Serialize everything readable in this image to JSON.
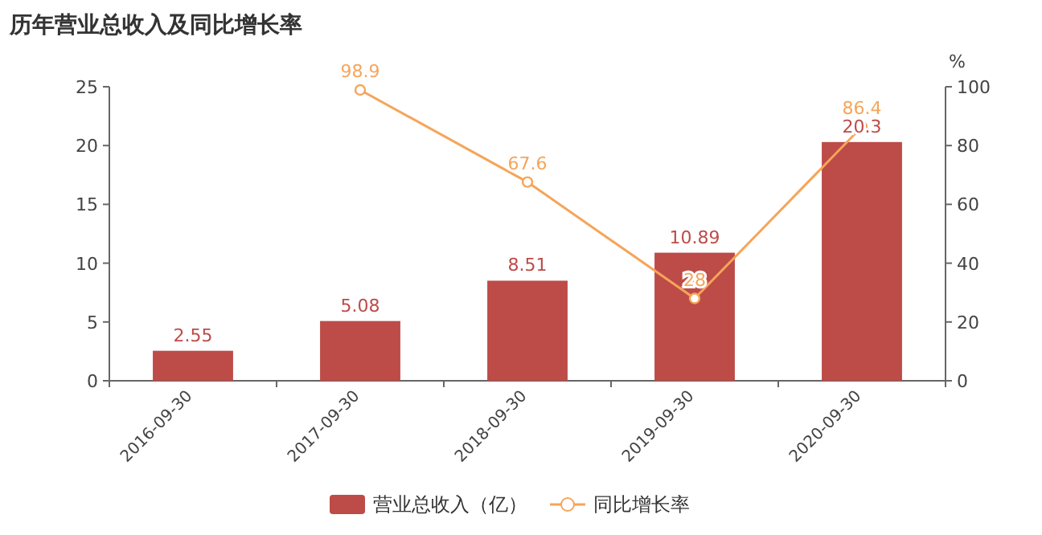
{
  "chart_data": {
    "type": "bar",
    "title": "历年营业总收入及同比增长率",
    "categories": [
      "2016-09-30",
      "2017-09-30",
      "2018-09-30",
      "2019-09-30",
      "2020-09-30"
    ],
    "series": [
      {
        "name": "营业总收入（亿）",
        "color": "#bd4b48",
        "values": [
          2.55,
          5.08,
          8.51,
          10.89,
          20.3
        ]
      },
      {
        "name": "同比增长率",
        "type": "line",
        "axis": "y2",
        "color": "#f5a55a",
        "marker": "circle",
        "values": [
          null,
          98.9,
          67.6,
          28,
          86.4
        ]
      }
    ],
    "ylim": [
      0,
      25
    ],
    "yticks": [
      0,
      5,
      10,
      15,
      20,
      25
    ],
    "y2lim": [
      0,
      100
    ],
    "y2ticks": [
      0,
      20,
      40,
      60,
      80,
      100
    ],
    "y2label": "%",
    "data_labels": true,
    "legend": "bottom"
  }
}
